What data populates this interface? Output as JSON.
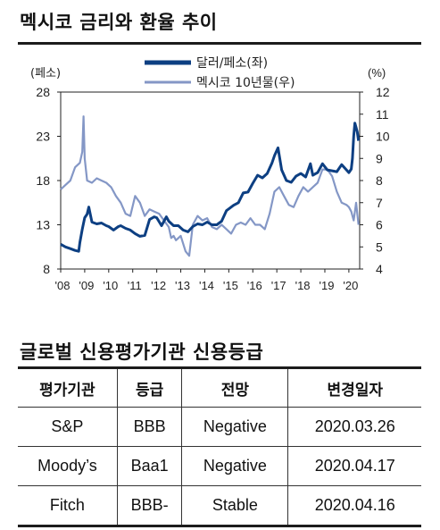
{
  "page": {
    "title": "멕시코 금리와 환율 추이",
    "table_title": "글로벌 신용평가기관 신용등급"
  },
  "chart_data": {
    "type": "line",
    "left_axis_unit": "(페소)",
    "right_axis_unit": "(%)",
    "x_tick_labels": [
      "'08",
      "'09",
      "'10",
      "'11",
      "'12",
      "'13",
      "'14",
      "'15",
      "'16",
      "'17",
      "'18",
      "'19",
      "'20"
    ],
    "x_ticks": [
      2008,
      2009,
      2010,
      2011,
      2012,
      2013,
      2014,
      2015,
      2016,
      2017,
      2018,
      2019,
      2020
    ],
    "xlim": [
      2008,
      2020.45
    ],
    "ylim_left": [
      8,
      28
    ],
    "ylim_right": [
      4,
      12
    ],
    "left_ticks": [
      8,
      13,
      18,
      23,
      28
    ],
    "right_ticks": [
      4,
      5,
      6,
      7,
      8,
      9,
      10,
      11,
      12
    ],
    "colors": {
      "usd_mxn": "#0d3f82",
      "bond10y": "#8497c6"
    },
    "series": [
      {
        "name": "달러/페소(좌)",
        "axis": "left",
        "x": [
          2008.0,
          2008.2,
          2008.4,
          2008.6,
          2008.75,
          2008.8,
          2008.9,
          2009.0,
          2009.1,
          2009.17,
          2009.3,
          2009.5,
          2009.7,
          2009.9,
          2010.0,
          2010.2,
          2010.4,
          2010.5,
          2010.7,
          2010.9,
          2011.1,
          2011.3,
          2011.5,
          2011.7,
          2011.9,
          2012.0,
          2012.2,
          2012.4,
          2012.5,
          2012.7,
          2012.9,
          2013.1,
          2013.3,
          2013.5,
          2013.7,
          2013.9,
          2014.1,
          2014.3,
          2014.5,
          2014.7,
          2014.9,
          2015.0,
          2015.2,
          2015.4,
          2015.6,
          2015.8,
          2016.0,
          2016.2,
          2016.4,
          2016.6,
          2016.8,
          2016.9,
          2017.05,
          2017.2,
          2017.4,
          2017.6,
          2017.8,
          2018.0,
          2018.2,
          2018.4,
          2018.5,
          2018.7,
          2018.9,
          2019.1,
          2019.3,
          2019.5,
          2019.7,
          2019.9,
          2020.0,
          2020.1,
          2020.15,
          2020.2,
          2020.25,
          2020.3,
          2020.35,
          2020.4
        ],
        "y": [
          10.8,
          10.5,
          10.3,
          10.1,
          10.0,
          11.0,
          12.5,
          13.8,
          14.2,
          15.0,
          13.3,
          13.1,
          13.2,
          12.9,
          12.8,
          12.4,
          12.8,
          12.9,
          12.6,
          12.4,
          12.0,
          11.7,
          11.8,
          13.6,
          13.9,
          13.8,
          12.9,
          13.9,
          13.4,
          12.9,
          12.9,
          12.4,
          12.2,
          12.8,
          13.1,
          13.0,
          13.3,
          13.0,
          13.0,
          13.4,
          14.6,
          14.8,
          15.2,
          15.5,
          16.6,
          16.7,
          17.7,
          18.6,
          18.3,
          18.8,
          20.0,
          20.8,
          21.7,
          19.2,
          18.0,
          17.8,
          18.5,
          18.8,
          18.4,
          19.9,
          18.6,
          18.9,
          19.9,
          19.2,
          19.1,
          19.0,
          19.8,
          19.2,
          18.9,
          19.3,
          20.5,
          23.0,
          24.5,
          24.0,
          23.5,
          22.5
        ]
      },
      {
        "name": "멕시코 10년물(우)",
        "axis": "right",
        "x": [
          2008.0,
          2008.2,
          2008.4,
          2008.6,
          2008.8,
          2008.9,
          2008.95,
          2009.0,
          2009.1,
          2009.3,
          2009.5,
          2009.7,
          2009.9,
          2010.1,
          2010.3,
          2010.5,
          2010.7,
          2010.9,
          2011.1,
          2011.3,
          2011.5,
          2011.7,
          2011.9,
          2012.1,
          2012.3,
          2012.5,
          2012.6,
          2012.7,
          2012.8,
          2013.0,
          2013.2,
          2013.35,
          2013.5,
          2013.7,
          2013.9,
          2014.1,
          2014.3,
          2014.5,
          2014.7,
          2014.9,
          2015.1,
          2015.3,
          2015.5,
          2015.7,
          2015.9,
          2016.1,
          2016.3,
          2016.5,
          2016.7,
          2016.9,
          2017.1,
          2017.3,
          2017.5,
          2017.7,
          2017.9,
          2018.1,
          2018.3,
          2018.5,
          2018.7,
          2018.9,
          2019.1,
          2019.3,
          2019.5,
          2019.7,
          2019.9,
          2020.0,
          2020.1,
          2020.15,
          2020.2,
          2020.3,
          2020.4
        ],
        "y": [
          7.6,
          7.8,
          8.0,
          8.6,
          8.8,
          9.3,
          10.9,
          9.0,
          8.0,
          7.9,
          8.1,
          8.0,
          7.9,
          7.7,
          7.3,
          7.0,
          6.5,
          6.4,
          7.3,
          7.0,
          6.4,
          6.7,
          6.6,
          6.5,
          6.2,
          5.9,
          5.4,
          5.5,
          5.3,
          5.5,
          4.8,
          4.6,
          6.0,
          6.4,
          6.2,
          6.3,
          5.9,
          5.8,
          6.0,
          5.8,
          5.6,
          6.0,
          6.1,
          6.0,
          6.3,
          6.0,
          6.0,
          5.8,
          6.5,
          7.5,
          7.7,
          7.3,
          6.9,
          6.8,
          7.3,
          7.7,
          7.5,
          7.7,
          7.9,
          8.5,
          8.5,
          8.2,
          7.5,
          7.0,
          6.9,
          6.8,
          6.6,
          6.4,
          6.2,
          7.0,
          6.0
        ]
      }
    ]
  },
  "ratings_table": {
    "headers": [
      "평가기관",
      "등급",
      "전망",
      "변경일자"
    ],
    "rows": [
      [
        "S&P",
        "BBB",
        "Negative",
        "2020.03.26"
      ],
      [
        "Moody’s",
        "Baa1",
        "Negative",
        "2020.04.17"
      ],
      [
        "Fitch",
        "BBB-",
        "Stable",
        "2020.04.16"
      ]
    ]
  }
}
